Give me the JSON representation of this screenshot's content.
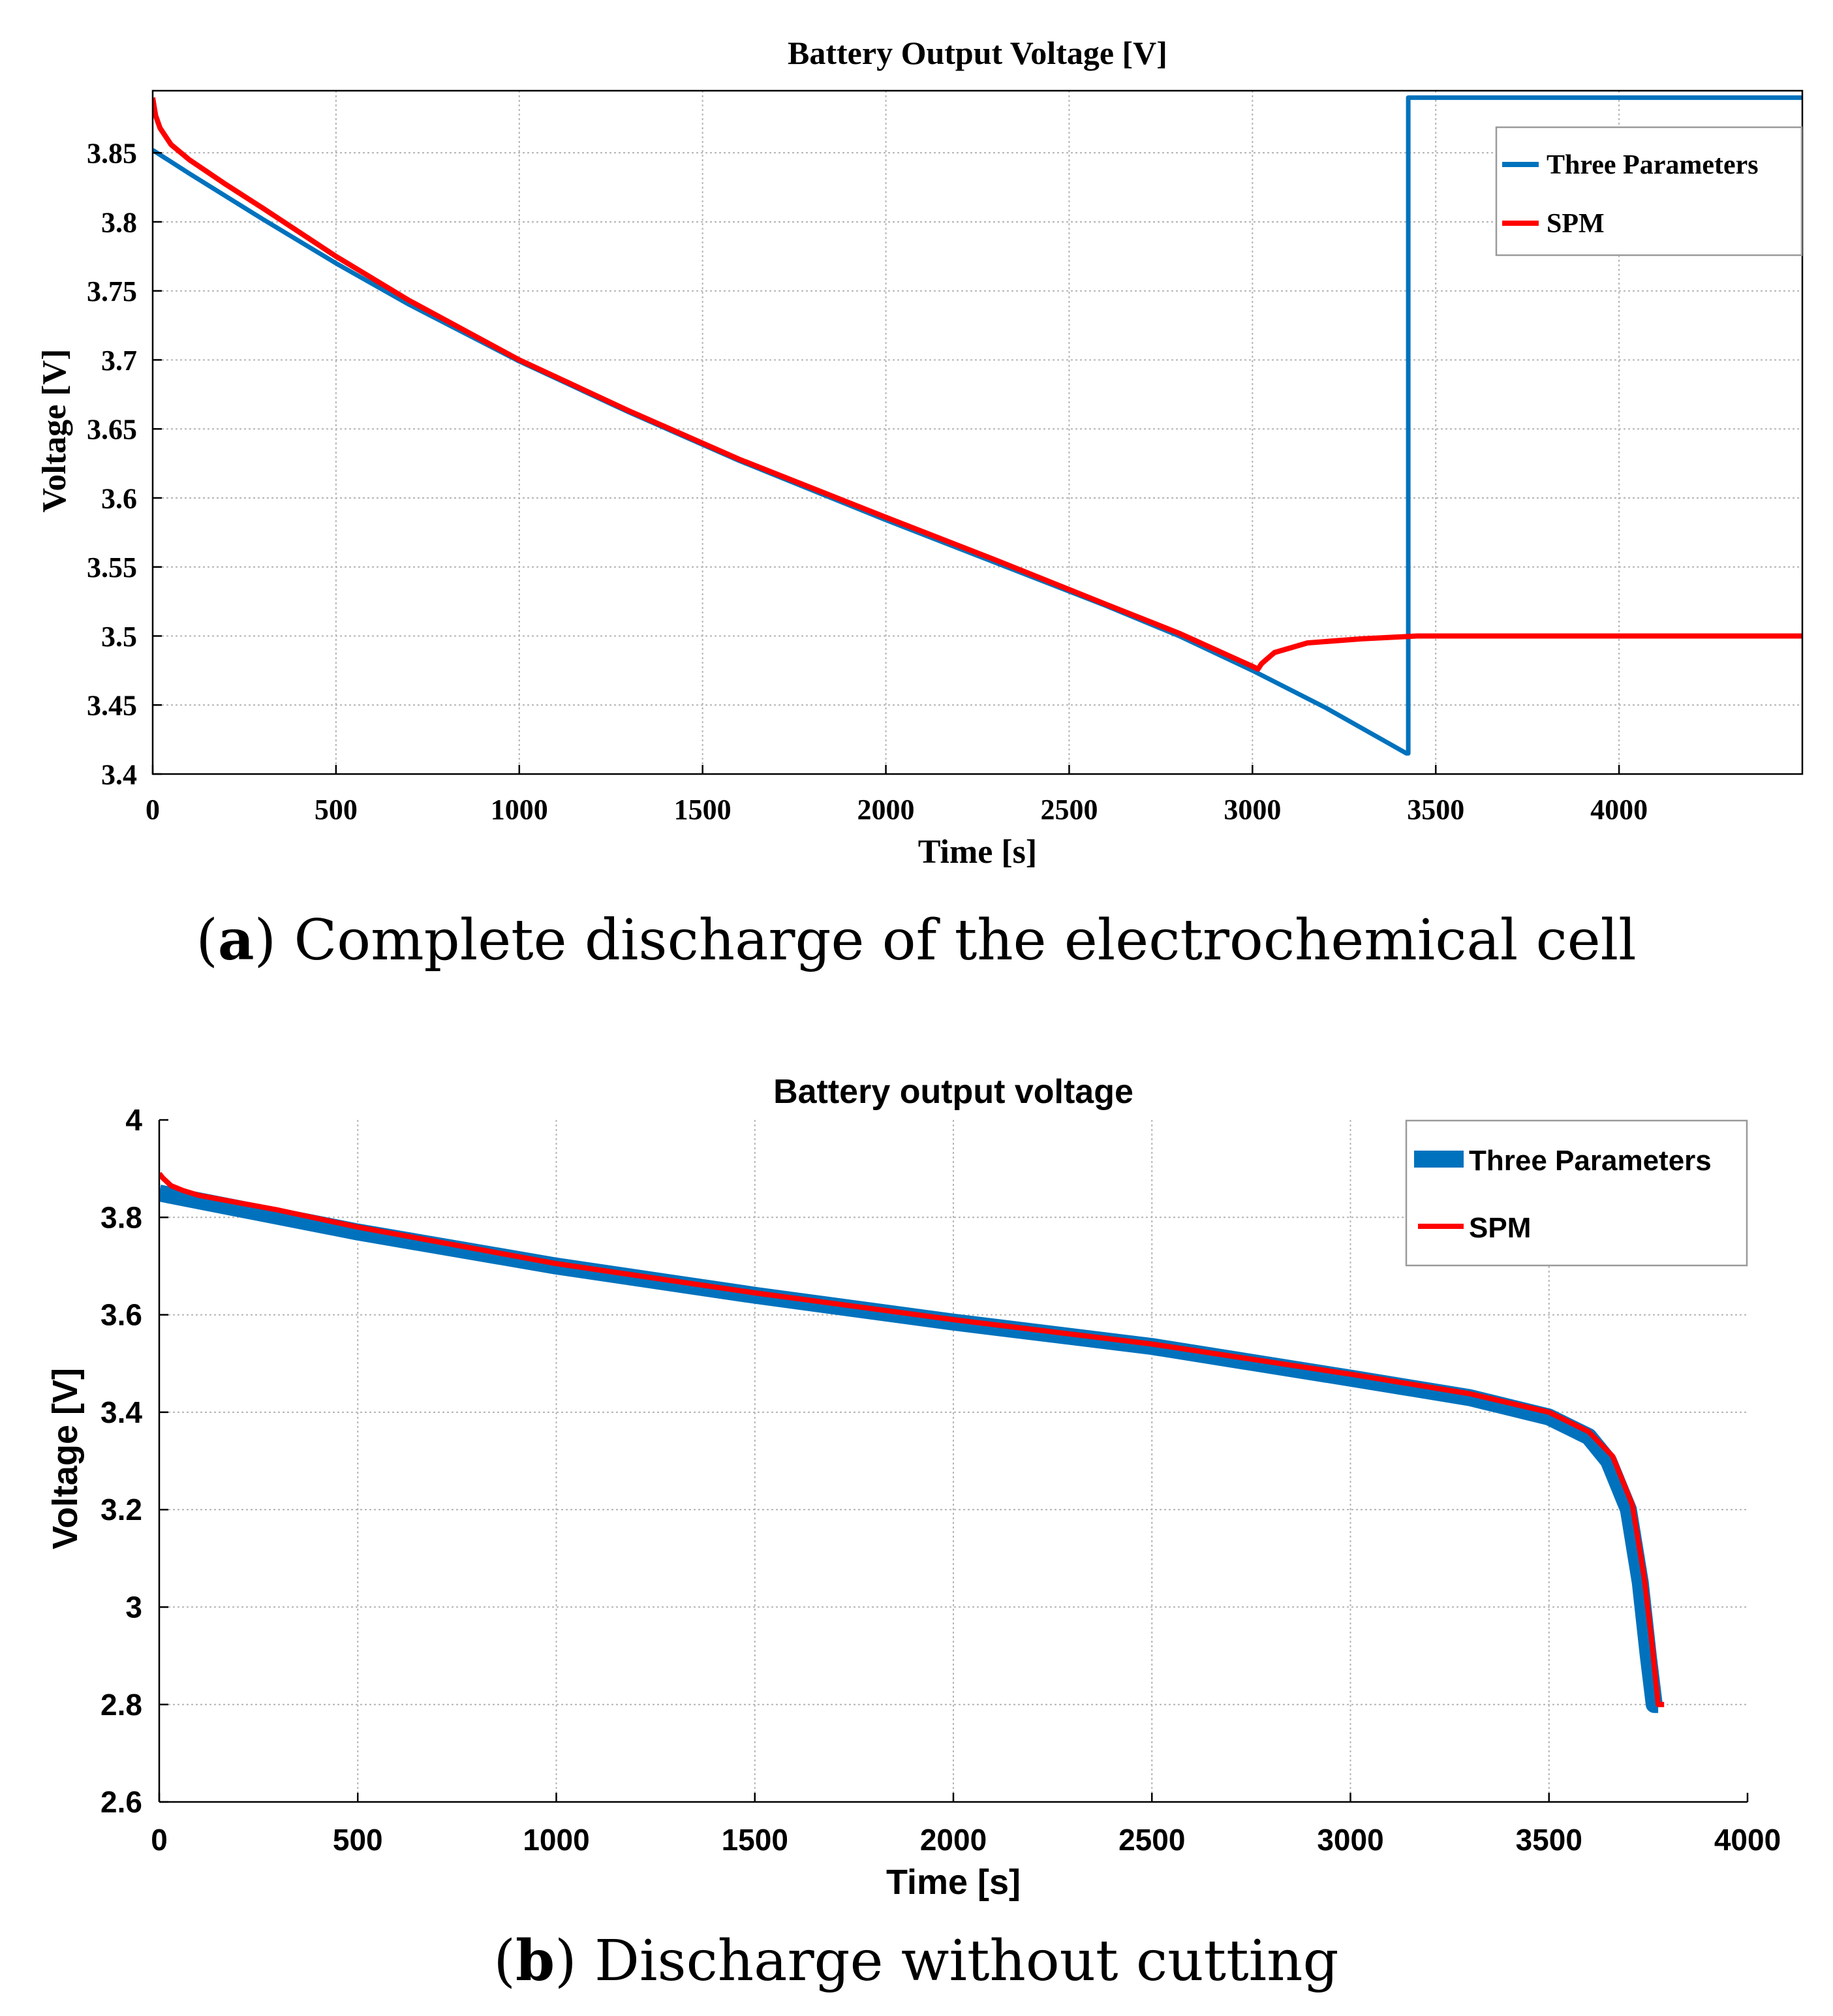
{
  "colors": {
    "three_params": "#0072BD",
    "spm": "#FF0000"
  },
  "captions": {
    "a": {
      "label": "a",
      "text": " Complete discharge of the electrochemical cell"
    },
    "b": {
      "label": "b",
      "text": " Discharge without cutting"
    }
  },
  "chart_data": [
    {
      "id": "a",
      "type": "line",
      "title": "Battery Output Voltage [V]",
      "xlabel": "Time [s]",
      "ylabel": "Voltage [V]",
      "xlim": [
        0,
        4500
      ],
      "ylim": [
        3.4,
        3.895
      ],
      "xticks": [
        0,
        500,
        1000,
        1500,
        2000,
        2500,
        3000,
        3500,
        4000
      ],
      "xtick_labels": [
        "0",
        "500",
        "1000",
        "1500",
        "2000",
        "2500",
        "3000",
        "3500",
        "4000"
      ],
      "yticks": [
        3.4,
        3.45,
        3.5,
        3.55,
        3.6,
        3.65,
        3.7,
        3.75,
        3.8,
        3.85
      ],
      "ytick_labels": [
        "3.4",
        "3.45",
        "3.5",
        "3.55",
        "3.6",
        "3.65",
        "3.7",
        "3.75",
        "3.8",
        "3.85"
      ],
      "grid": true,
      "legend_position": "top-right",
      "series": [
        {
          "name": "Three Parameters",
          "x": [
            0,
            100,
            300,
            500,
            700,
            1000,
            1300,
            1600,
            2000,
            2300,
            2600,
            2800,
            3000,
            3200,
            3420,
            3425,
            3425,
            4500
          ],
          "y": [
            3.852,
            3.835,
            3.802,
            3.77,
            3.74,
            3.699,
            3.662,
            3.627,
            3.584,
            3.553,
            3.522,
            3.5,
            3.475,
            3.448,
            3.415,
            3.415,
            3.89,
            3.89
          ]
        },
        {
          "name": "SPM",
          "x": [
            0,
            3,
            8,
            20,
            50,
            100,
            200,
            300,
            500,
            700,
            1000,
            1300,
            1600,
            2000,
            2300,
            2600,
            2800,
            3000,
            3015,
            3025,
            3060,
            3150,
            3300,
            3450,
            4500
          ],
          "y": [
            3.89,
            3.885,
            3.877,
            3.868,
            3.856,
            3.845,
            3.827,
            3.81,
            3.775,
            3.743,
            3.7,
            3.663,
            3.628,
            3.586,
            3.555,
            3.523,
            3.502,
            3.478,
            3.476,
            3.48,
            3.488,
            3.495,
            3.498,
            3.5,
            3.5
          ]
        }
      ]
    },
    {
      "id": "b",
      "type": "line",
      "title": "Battery output voltage",
      "xlabel": "Time [s]",
      "ylabel": "Voltage  [V]",
      "xlim": [
        0,
        4000
      ],
      "ylim": [
        2.6,
        4.0
      ],
      "xticks": [
        0,
        500,
        1000,
        1500,
        2000,
        2500,
        3000,
        3500,
        4000
      ],
      "xtick_labels": [
        "0",
        "500",
        "1000",
        "1500",
        "2000",
        "2500",
        "3000",
        "3500",
        "4000"
      ],
      "yticks": [
        2.6,
        2.8,
        3.0,
        3.2,
        3.4,
        3.6,
        3.8,
        4.0
      ],
      "ytick_labels": [
        "2.6",
        "2.8",
        "3",
        "3.2",
        "3.4",
        "3.6",
        "3.8",
        "4"
      ],
      "grid": true,
      "legend_position": "top-right",
      "series": [
        {
          "name": "Three Parameters",
          "x": [
            0,
            500,
            1000,
            1500,
            2000,
            2500,
            3000,
            3300,
            3500,
            3600,
            3650,
            3700,
            3730,
            3750,
            3765,
            3775
          ],
          "y": [
            3.85,
            3.77,
            3.7,
            3.64,
            3.585,
            3.535,
            3.47,
            3.43,
            3.39,
            3.35,
            3.3,
            3.2,
            3.05,
            2.9,
            2.8,
            2.8
          ]
        },
        {
          "name": "SPM",
          "x": [
            0,
            10,
            30,
            60,
            100,
            300,
            500,
            1000,
            1500,
            2000,
            2500,
            3000,
            3300,
            3500,
            3600,
            3660,
            3710,
            3740,
            3760,
            3775,
            3785,
            3790
          ],
          "y": [
            3.89,
            3.88,
            3.865,
            3.855,
            3.845,
            3.815,
            3.78,
            3.705,
            3.645,
            3.59,
            3.54,
            3.478,
            3.438,
            3.4,
            3.36,
            3.31,
            3.21,
            3.06,
            2.92,
            2.8,
            2.8,
            2.8
          ]
        }
      ]
    }
  ]
}
